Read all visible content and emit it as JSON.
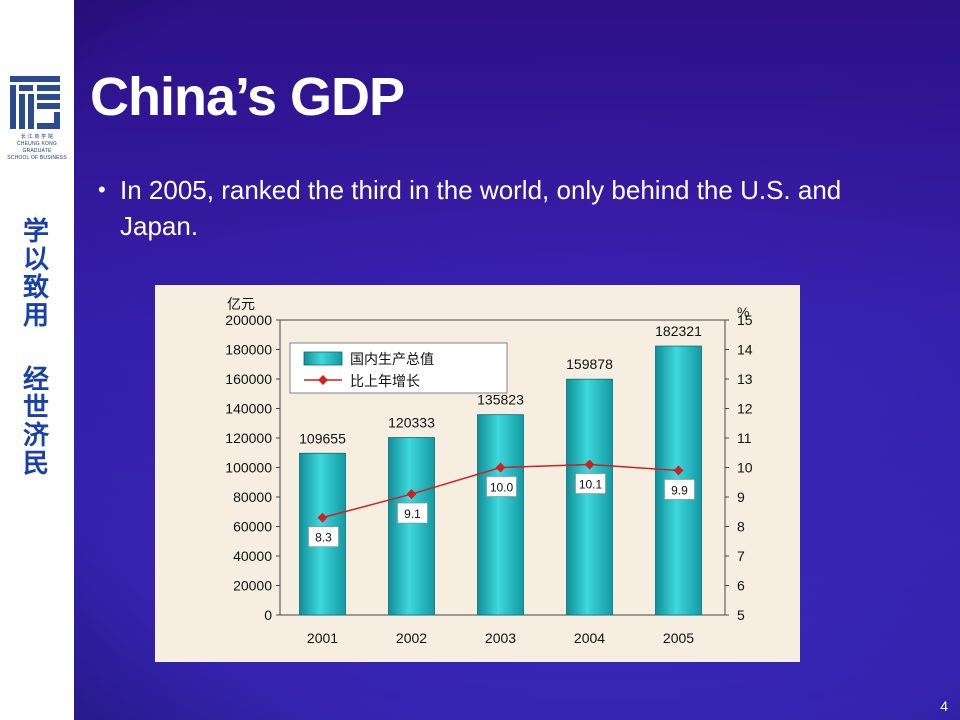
{
  "slide": {
    "title": "China’s GDP",
    "bullet": "In 2005, ranked the third in the world, only behind the U.S. and Japan.",
    "page_number": "4"
  },
  "sidebar": {
    "logo_caption_lines": [
      "长 江 商 学 院",
      "CHEUNG KONG GRADUATE",
      "SCHOOL OF BUSINESS"
    ],
    "motto_line1": [
      "学",
      "以",
      "致",
      "用"
    ],
    "motto_line2": [
      "经",
      "世",
      "济",
      "民"
    ],
    "colors": {
      "logo_blue": "#2b4c8c",
      "motto_blue": "#1840a8"
    }
  },
  "chart_data": {
    "type": "bar",
    "categories": [
      "2001",
      "2002",
      "2003",
      "2004",
      "2005"
    ],
    "series": [
      {
        "name": "国内生产总值",
        "type": "bar",
        "axis": "left",
        "values": [
          109655,
          120333,
          135823,
          159878,
          182321
        ],
        "color": "#1fb8c0"
      },
      {
        "name": "比上年增长",
        "type": "line",
        "axis": "right",
        "values": [
          8.3,
          9.1,
          10.0,
          10.1,
          9.9
        ],
        "color": "#d02020"
      }
    ],
    "bar_labels": [
      "109655",
      "120333",
      "135823",
      "159878",
      "182321"
    ],
    "line_labels": [
      "8.3",
      "9.1",
      "10.0",
      "10.1",
      "9.9"
    ],
    "left_axis": {
      "unit": "亿元",
      "ylim": [
        0,
        200000
      ],
      "ticks": [
        "0",
        "20000",
        "40000",
        "60000",
        "80000",
        "100000",
        "120000",
        "140000",
        "160000",
        "180000",
        "200000"
      ]
    },
    "right_axis": {
      "unit": "%",
      "ylim": [
        5,
        15
      ],
      "ticks": [
        "5",
        "6",
        "7",
        "8",
        "9",
        "10",
        "11",
        "12",
        "13",
        "14",
        "15"
      ]
    },
    "legend_placement": "top-left"
  }
}
